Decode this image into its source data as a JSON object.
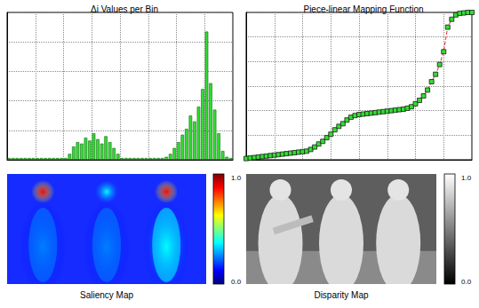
{
  "chart_data": [
    {
      "type": "bar",
      "title": "Δi Values per Bin",
      "x": [
        0.5,
        1.5,
        2.5,
        3.5,
        4.5,
        5.5,
        6.5,
        7.5,
        8.5,
        9.5,
        10.5,
        11.5,
        12.5,
        13.5,
        14.5,
        15.5,
        16.5,
        17.5,
        18.5,
        19.5,
        20.5,
        21.5,
        22.5,
        23.5,
        24.5,
        25.5,
        26.5,
        27.5,
        28.5,
        29.5,
        30.5,
        31.5,
        32.5,
        33.5,
        34.5,
        35.5,
        36.5,
        37.5,
        38.5,
        39.5,
        40.5,
        41.5,
        42.5,
        43.5,
        44.5,
        45.5,
        46.5,
        47.5,
        48.5,
        49.5,
        50.5,
        51.5,
        52.5,
        53.5,
        54.5,
        55.5
      ],
      "values": [
        0.06,
        0.06,
        0.06,
        0.06,
        0.06,
        0.06,
        0.06,
        0.06,
        0.06,
        0.06,
        0.06,
        0.06,
        0.06,
        0.06,
        0.06,
        0.2,
        0.45,
        0.6,
        0.55,
        0.75,
        0.65,
        0.9,
        0.7,
        0.55,
        0.8,
        0.6,
        0.4,
        0.2,
        0.06,
        0.06,
        0.06,
        0.06,
        0.06,
        0.06,
        0.06,
        0.06,
        0.06,
        0.06,
        0.06,
        0.1,
        0.2,
        0.4,
        0.6,
        0.85,
        1.05,
        1.5,
        1.3,
        1.8,
        2.4,
        4.35,
        2.6,
        1.7,
        0.9,
        0.3,
        0.1,
        0.06
      ],
      "color": "#33dd33",
      "xlim": [
        0,
        56
      ],
      "xticks": [
        0,
        7,
        14,
        21,
        28,
        35,
        42,
        49,
        56
      ],
      "ylim": [
        0,
        5
      ],
      "yticks": [
        0,
        1,
        2,
        3,
        4,
        5
      ],
      "grid": true,
      "tick_labels": false
    },
    {
      "type": "line",
      "title": "Piece-linear Mapping Function",
      "x": [
        0,
        1,
        2,
        3,
        4,
        5,
        6,
        7,
        8,
        9,
        10,
        11,
        12,
        13,
        14,
        15,
        16,
        17,
        18,
        19,
        20,
        21,
        22,
        23,
        24,
        25,
        26,
        27,
        28,
        29,
        30,
        31,
        32,
        33,
        34,
        35,
        36,
        37,
        38,
        39,
        40,
        41,
        42,
        43,
        44,
        45,
        46,
        47,
        48,
        49,
        50,
        51,
        52,
        53,
        54,
        55,
        56
      ],
      "values": [
        0.05,
        0.07,
        0.09,
        0.11,
        0.13,
        0.15,
        0.17,
        0.19,
        0.21,
        0.23,
        0.25,
        0.27,
        0.29,
        0.31,
        0.33,
        0.35,
        0.42,
        0.52,
        0.64,
        0.75,
        0.9,
        1.04,
        1.22,
        1.36,
        1.47,
        1.62,
        1.73,
        1.8,
        1.84,
        1.86,
        1.88,
        1.9,
        1.92,
        1.94,
        1.96,
        1.98,
        2.0,
        2.02,
        2.04,
        2.06,
        2.1,
        2.16,
        2.28,
        2.42,
        2.6,
        2.84,
        3.18,
        3.48,
        3.88,
        4.4,
        5.4,
        5.72,
        5.9,
        5.96,
        5.98,
        6.0,
        6.0
      ],
      "color": "#ee2222",
      "marker": "square",
      "line_style": "dashed",
      "xlim": [
        0,
        56
      ],
      "xticks": [
        0,
        7,
        14,
        21,
        28,
        35,
        42,
        49,
        56
      ],
      "ylim": [
        0,
        6
      ],
      "yticks": [
        0,
        1,
        2,
        3,
        4,
        5,
        6
      ],
      "grid": true,
      "tick_labels": false
    },
    {
      "type": "image",
      "title": "Saliency Map",
      "colorbar": {
        "range": [
          0,
          1
        ],
        "ticks": [
          {
            "value": 0,
            "label": "0.0"
          },
          {
            "value": 1,
            "label": "1.0"
          }
        ]
      },
      "colors": [
        "#00007f",
        "#0000ff",
        "#007fff",
        "#00ffff",
        "#7fff7f",
        "#ffff00",
        "#ff7f00",
        "#ff0000",
        "#7f0000"
      ]
    },
    {
      "type": "image",
      "title": "Disparity Map",
      "colorbar": {
        "range": [
          0,
          1
        ],
        "ticks": [
          {
            "value": 0,
            "label": "0.0"
          },
          {
            "value": 1,
            "label": "1.0"
          }
        ]
      },
      "colors": [
        "#000000",
        "#ffffff"
      ]
    }
  ]
}
